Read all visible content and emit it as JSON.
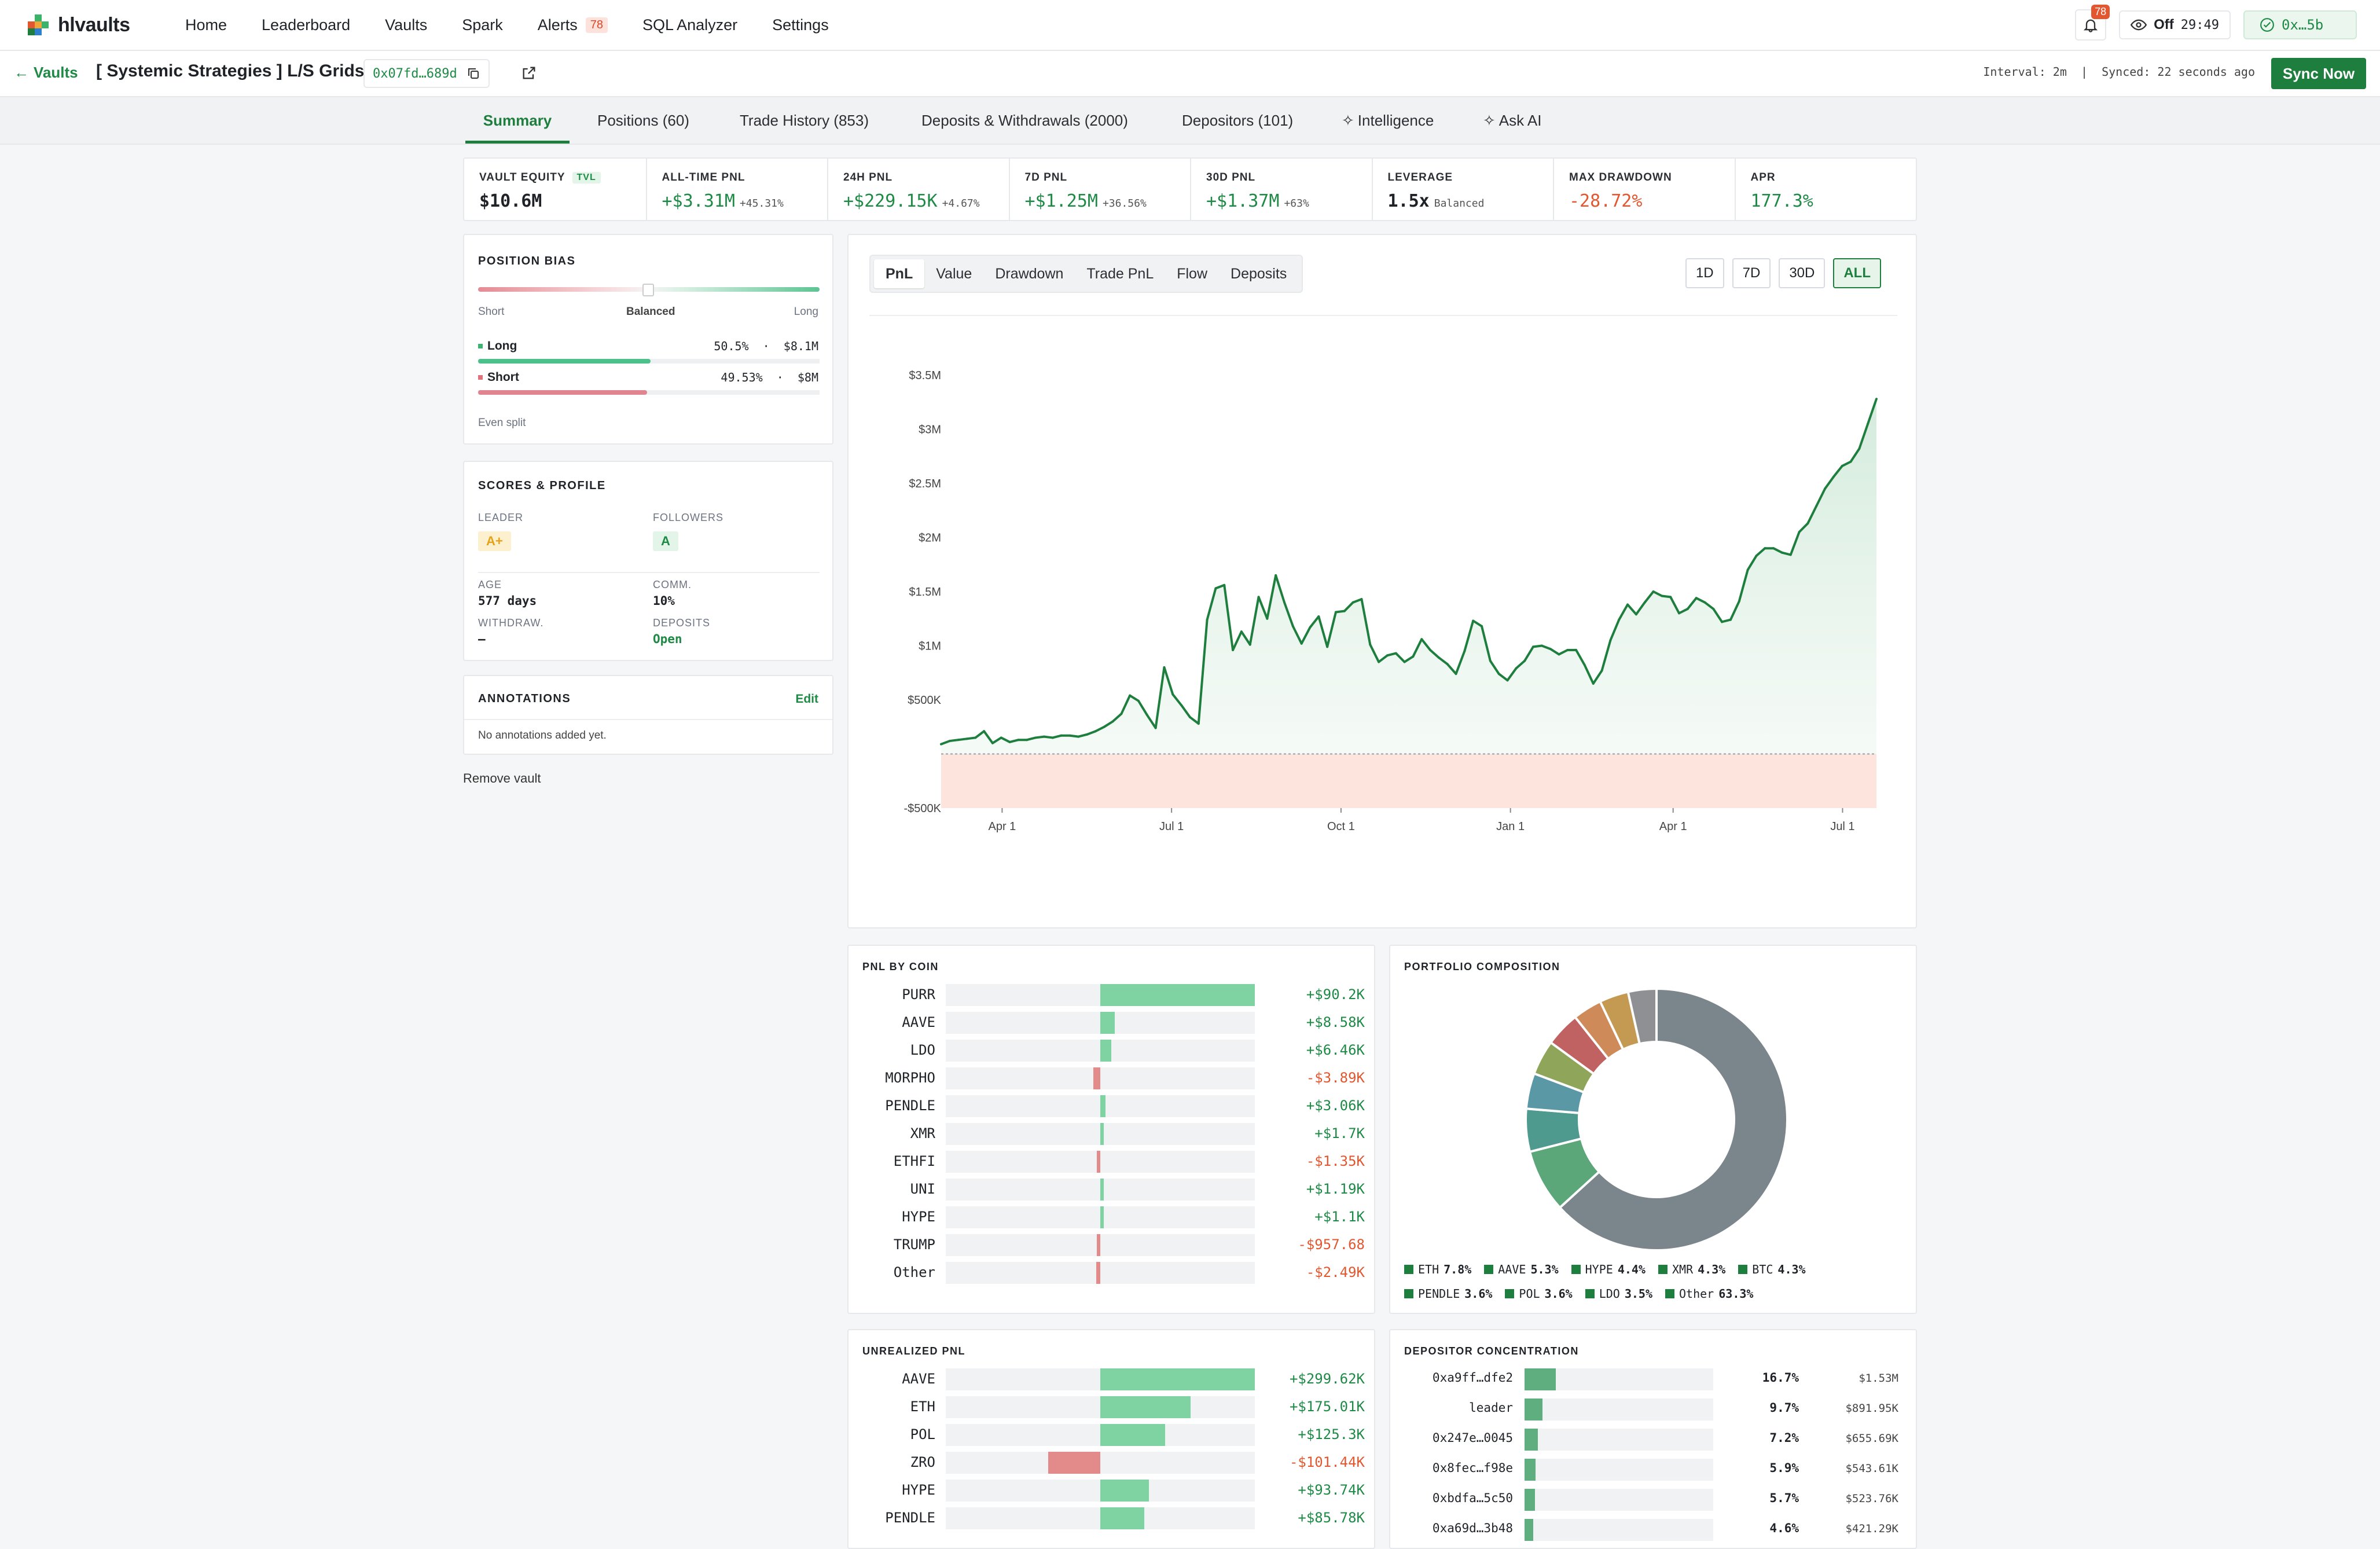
{
  "app": {
    "name": "hlvaults"
  },
  "nav": {
    "links": [
      "Home",
      "Leaderboard",
      "Vaults",
      "Spark",
      "Alerts",
      "SQL Analyzer",
      "Settings"
    ],
    "alerts_badge": "78",
    "bell_badge": "78",
    "watch_label": "Off",
    "watch_timer": "29:49",
    "wallet": "0x…5b"
  },
  "vault": {
    "back_label": "Vaults",
    "title": "[ Systemic Strategies ] L/S Grids",
    "address": "0x07fd…689d",
    "sync_info": "Interval: 2m  |  Synced: 22 seconds ago",
    "sync_button": "Sync Now"
  },
  "tabs": [
    "Summary",
    "Positions (60)",
    "Trade History (853)",
    "Deposits & Withdrawals (2000)",
    "Depositors (101)",
    "Intelligence",
    "Ask AI"
  ],
  "stats": [
    {
      "label": "VAULT EQUITY",
      "tag": "TVL",
      "value": "$10.6M",
      "sub": "",
      "color": "dark"
    },
    {
      "label": "ALL-TIME PNL",
      "value": "+$3.31M",
      "sub": "+45.31%",
      "color": "green"
    },
    {
      "label": "24H PNL",
      "value": "+$229.15K",
      "sub": "+4.67%",
      "color": "green"
    },
    {
      "label": "7D PNL",
      "value": "+$1.25M",
      "sub": "+36.56%",
      "color": "green"
    },
    {
      "label": "30D PNL",
      "value": "+$1.37M",
      "sub": "+63%",
      "color": "green"
    },
    {
      "label": "LEVERAGE",
      "value": "1.5x",
      "sub": "Balanced",
      "color": "dark"
    },
    {
      "label": "MAX DRAWDOWN",
      "value": "-28.72%",
      "sub": "",
      "color": "red"
    },
    {
      "label": "APR",
      "value": "177.3%",
      "sub": "",
      "color": "green"
    }
  ],
  "position_bias": {
    "title": "POSITION BIAS",
    "left": "Short",
    "center": "Balanced",
    "right": "Long",
    "long_label": "Long",
    "long_value": "50.5%  ·  $8.1M",
    "long_pct": 50.5,
    "short_label": "Short",
    "short_value": "49.53%  ·  $8M",
    "short_pct": 49.53,
    "footer": "Even split"
  },
  "scores": {
    "title": "SCORES & PROFILE",
    "leader_label": "LEADER",
    "leader_grade": "A+",
    "followers_label": "FOLLOWERS",
    "followers_grade": "A",
    "age_label": "AGE",
    "age_value": "577 days",
    "comm_label": "COMM.",
    "comm_value": "10%",
    "withdraw_label": "WITHDRAW.",
    "withdraw_value": "–",
    "deposits_label": "DEPOSITS",
    "deposits_value": "Open"
  },
  "annotations": {
    "title": "ANNOTATIONS",
    "edit": "Edit",
    "empty": "No annotations added yet."
  },
  "remove_vault": "Remove vault",
  "chart_tabs": [
    "PnL",
    "Value",
    "Drawdown",
    "Trade PnL",
    "Flow",
    "Deposits"
  ],
  "range_buttons": [
    "1D",
    "7D",
    "30D",
    "ALL"
  ],
  "chart_data": {
    "type": "area",
    "title": "",
    "xlabel": "",
    "ylabel": "",
    "ylim": [
      -500000,
      3500000
    ],
    "y_ticks": [
      "$3.5M",
      "$3M",
      "$2.5M",
      "$2M",
      "$1.5M",
      "$1M",
      "$500K",
      "-$500K"
    ],
    "x_ticks": [
      "Apr 1",
      "Jul 1",
      "Oct 1",
      "Jan 1",
      "Apr 1",
      "Jul 1"
    ],
    "x_tick_index": [
      9,
      34,
      59,
      84,
      108,
      133
    ],
    "values": [
      0,
      60000,
      80000,
      80000,
      270000,
      -260000,
      -130000,
      -250000,
      -160000,
      -200000,
      -190000,
      -150000,
      -140000,
      -160000,
      -110000,
      -90000,
      -100000,
      -80000,
      -50000,
      -20000,
      -30000,
      20000,
      30000,
      60000,
      120000,
      160000,
      210000,
      180000,
      210000,
      110000,
      60000,
      90000,
      220000,
      310000,
      240000,
      140000,
      70000,
      180000,
      220000,
      300000,
      450000,
      380000,
      250000,
      130000,
      160000,
      230000,
      290000,
      400000,
      330000,
      270000,
      490000,
      610000,
      650000,
      600000,
      550000,
      450000,
      400000,
      330000,
      260000,
      220000,
      400000,
      550000,
      480000,
      520000,
      700000,
      600000,
      500000,
      450000,
      420000,
      470000,
      640000,
      720000,
      780000,
      790000,
      820000,
      860000,
      880000,
      830000,
      760000,
      740000,
      790000,
      850000,
      850000,
      730000,
      560000,
      560000,
      680000,
      1010000,
      1110000,
      980000,
      1150000,
      1280000,
      1370000,
      1460000,
      1520000,
      1440000,
      1300000,
      1280000,
      1300000,
      1240000,
      1210000,
      1300000,
      1440000,
      1390000,
      1240000,
      1200000,
      1160000,
      1120000,
      900000,
      1170000,
      1420000,
      1670000,
      1530000,
      1290000,
      1340000,
      1470000,
      1630000,
      1700000,
      1680000,
      1650000,
      1730000,
      1800000,
      1760000,
      1860000,
      1930000,
      2050000,
      1890000,
      1680000,
      2200000,
      2020000,
      1990000,
      2020000,
      2070000,
      2210000,
      2340000,
      2410000,
      2420000,
      2460000,
      2540000,
      2520000,
      2700000,
      2800000,
      3050000
    ],
    "series": [
      {
        "values": [
          90,
          120,
          130,
          140,
          150,
          210,
          100,
          150,
          110,
          130,
          130,
          150,
          160,
          150,
          170,
          170,
          160,
          180,
          210,
          250,
          300,
          370,
          540,
          490,
          360,
          240,
          800,
          550,
          450,
          340,
          280,
          1240,
          1530,
          1560,
          960,
          1130,
          1010,
          1450,
          1250,
          1650,
          1400,
          1180,
          1020,
          1170,
          1270,
          990,
          1310,
          1320,
          1400,
          1430,
          1010,
          850,
          910,
          930,
          850,
          900,
          1060,
          960,
          890,
          830,
          740,
          950,
          1230,
          1180,
          860,
          740,
          680,
          790,
          860,
          990,
          1000,
          970,
          920,
          960,
          960,
          820,
          650,
          770,
          1050,
          1240,
          1380,
          1290,
          1400,
          1500,
          1460,
          1450,
          1300,
          1340,
          1440,
          1400,
          1340,
          1220,
          1240,
          1410,
          1700,
          1830,
          1900,
          1900,
          1860,
          1840,
          2050,
          2130,
          2290,
          2450,
          2560,
          2660,
          2700,
          2820,
          3050,
          3280
        ]
      }
    ]
  },
  "pnl_by_coin": {
    "title": "PNL BY COIN",
    "rows": [
      {
        "coin": "PURR",
        "value": "+$90.2K",
        "amount": 90200
      },
      {
        "coin": "AAVE",
        "value": "+$8.58K",
        "amount": 8580
      },
      {
        "coin": "LDO",
        "value": "+$6.46K",
        "amount": 6460
      },
      {
        "coin": "MORPHO",
        "value": "-$3.89K",
        "amount": -3890
      },
      {
        "coin": "PENDLE",
        "value": "+$3.06K",
        "amount": 3060
      },
      {
        "coin": "XMR",
        "value": "+$1.7K",
        "amount": 1700
      },
      {
        "coin": "ETHFI",
        "value": "-$1.35K",
        "amount": -1350
      },
      {
        "coin": "UNI",
        "value": "+$1.19K",
        "amount": 1190
      },
      {
        "coin": "HYPE",
        "value": "+$1.1K",
        "amount": 1100
      },
      {
        "coin": "TRUMP",
        "value": "-$957.68",
        "amount": -957.68
      },
      {
        "coin": "Other",
        "value": "-$2.49K",
        "amount": -2490
      }
    ]
  },
  "portfolio": {
    "title": "PORTFOLIO COMPOSITION",
    "slices": [
      {
        "name": "Other",
        "pct": 63.3,
        "color": "#7b858c"
      },
      {
        "name": "ETH",
        "pct": 7.8,
        "color": "#5ba77a"
      },
      {
        "name": "AAVE",
        "pct": 5.3,
        "color": "#4f9a8f"
      },
      {
        "name": "HYPE",
        "pct": 4.4,
        "color": "#5b98a6"
      },
      {
        "name": "XMR",
        "pct": 4.3,
        "color": "#8fa55a"
      },
      {
        "name": "BTC",
        "pct": 4.3,
        "color": "#c06261"
      },
      {
        "name": "PENDLE",
        "pct": 3.6,
        "color": "#cf8a5a"
      },
      {
        "name": "POL",
        "pct": 3.6,
        "color": "#c49a52"
      },
      {
        "name": "LDO",
        "pct": 3.5,
        "color": "#8e9094"
      }
    ],
    "legend": [
      {
        "name": "ETH",
        "pct": "7.8%"
      },
      {
        "name": "AAVE",
        "pct": "5.3%"
      },
      {
        "name": "HYPE",
        "pct": "4.4%"
      },
      {
        "name": "XMR",
        "pct": "4.3%"
      },
      {
        "name": "BTC",
        "pct": "4.3%"
      },
      {
        "name": "PENDLE",
        "pct": "3.6%"
      },
      {
        "name": "POL",
        "pct": "3.6%"
      },
      {
        "name": "LDO",
        "pct": "3.5%"
      },
      {
        "name": "Other",
        "pct": "63.3%"
      }
    ]
  },
  "unrealized": {
    "title": "UNREALIZED PNL",
    "rows": [
      {
        "coin": "AAVE",
        "value": "+$299.62K",
        "amount": 299620
      },
      {
        "coin": "ETH",
        "value": "+$175.01K",
        "amount": 175010
      },
      {
        "coin": "POL",
        "value": "+$125.3K",
        "amount": 125300
      },
      {
        "coin": "ZRO",
        "value": "-$101.44K",
        "amount": -101440
      },
      {
        "coin": "HYPE",
        "value": "+$93.74K",
        "amount": 93740
      },
      {
        "coin": "PENDLE",
        "value": "+$85.78K",
        "amount": 85780
      }
    ]
  },
  "depositors": {
    "title": "DEPOSITOR CONCENTRATION",
    "rows": [
      {
        "name": "0xa9ff…dfe2",
        "pct": "16.7%",
        "share": 16.7,
        "amount": "$1.53M"
      },
      {
        "name": "leader",
        "pct": "9.7%",
        "share": 9.7,
        "amount": "$891.95K"
      },
      {
        "name": "0x247e…0045",
        "pct": "7.2%",
        "share": 7.2,
        "amount": "$655.69K"
      },
      {
        "name": "0x8fec…f98e",
        "pct": "5.9%",
        "share": 5.9,
        "amount": "$543.61K"
      },
      {
        "name": "0xbdfa…5c50",
        "pct": "5.7%",
        "share": 5.7,
        "amount": "$523.76K"
      },
      {
        "name": "0xa69d…3b48",
        "pct": "4.6%",
        "share": 4.6,
        "amount": "$421.29K"
      }
    ]
  },
  "colors": {
    "green": "#1e7e3e",
    "green_light": "#7fd3a2",
    "red": "#e2572f",
    "red_light": "#e38b8b"
  }
}
